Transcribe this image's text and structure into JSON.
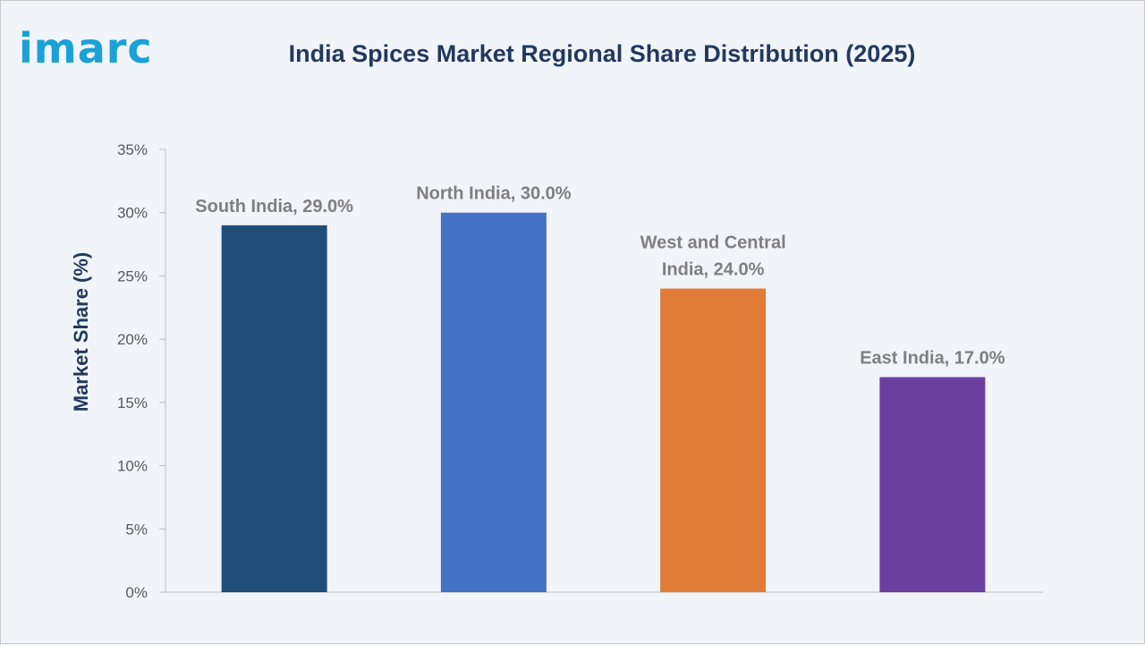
{
  "brand": {
    "logo_text": "imarc"
  },
  "colors": {
    "logo": "#1aa1d8",
    "title": "#22395e",
    "background": "#f1f4f9"
  },
  "chart_data": {
    "type": "bar",
    "title": "India Spices Market Regional Share Distribution (2025)",
    "xlabel": "",
    "ylabel": "Market Share (%)",
    "ylim": [
      0,
      35
    ],
    "yticks": [
      "0%",
      "5%",
      "10%",
      "15%",
      "20%",
      "25%",
      "30%",
      "35%"
    ],
    "grid": false,
    "categories": [
      "South India",
      "North India",
      "West and Central India",
      "East India"
    ],
    "values": [
      29.0,
      30.0,
      24.0,
      17.0
    ],
    "data_labels": [
      [
        "South India, 29.0%"
      ],
      [
        "North India, 30.0%"
      ],
      [
        "West and Central",
        "India, 24.0%"
      ],
      [
        "East India, 17.0%"
      ]
    ],
    "bar_colors": [
      "#1f4e79",
      "#4472c4",
      "#e07b39",
      "#6b3fa0"
    ]
  }
}
